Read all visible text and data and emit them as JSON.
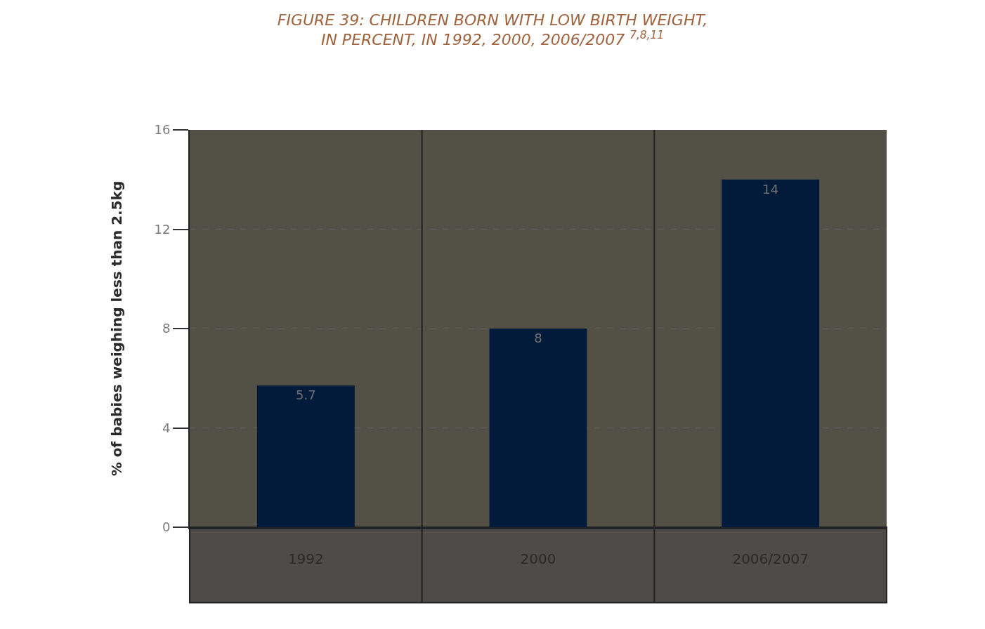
{
  "chart_data": {
    "type": "bar",
    "title": "FIGURE 39: CHILDREN BORN WITH LOW BIRTH WEIGHT,\nIN PERCENT, IN 1992, 2000, 2006/2007 $^{7,8,11}$",
    "ylabel": "% of babies weighing less than 2.5kg",
    "categories": [
      "1992",
      "2000",
      "2006/2007"
    ],
    "values": [
      5.7,
      8,
      14
    ],
    "color": "#021b3a",
    "data_labels": true,
    "ylim": [
      0,
      16
    ],
    "yticks": [
      0,
      4,
      8,
      12,
      16
    ],
    "grid": "y"
  }
}
